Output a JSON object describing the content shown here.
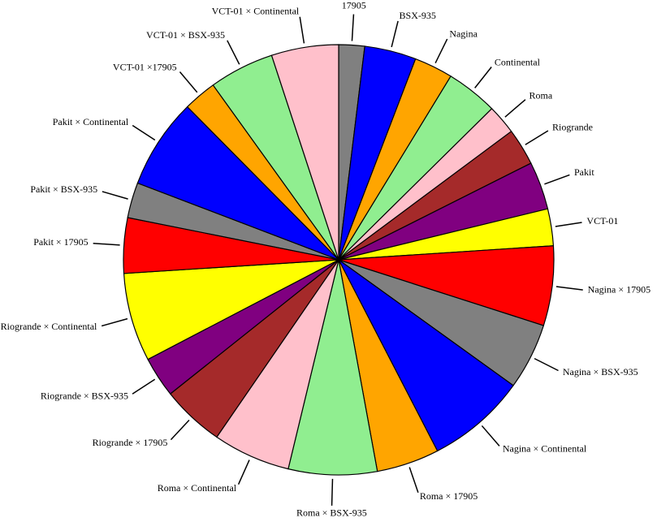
{
  "chart_data": {
    "type": "pie",
    "categories": [
      "17905",
      "BSX-935",
      "Nagina",
      "Continental",
      "Roma",
      "Riogrande",
      "Pakit",
      "VCT-01",
      "Nagina × 17905",
      "Nagina × BSX-935",
      "Nagina × Continental",
      "Roma × 17905",
      "Roma × BSX-935",
      "Roma × Continental",
      "Riogrande × 17905",
      "Riogrande × BSX-935",
      "Riogrande × Continental",
      "Pakit × 17905",
      "Pakit × BSX-935",
      "Pakit × Continental",
      "VCT-01 ×17905",
      "VCT-01 × BSX-935",
      "VCT-01 × Continental"
    ],
    "values": [
      7,
      14,
      10.5,
      14,
      8,
      10,
      13,
      10,
      21.6,
      18,
      27,
      17,
      24,
      21,
      17,
      11,
      24,
      15,
      9.6,
      24.5,
      9,
      17.6,
      18.2
    ],
    "colors": [
      "#808080",
      "#0000ff",
      "#ffa500",
      "#90ee90",
      "#ffc0cb",
      "#a52a2a",
      "#800080",
      "#ffff00",
      "#ff0000",
      "#808080",
      "#0000ff",
      "#ffa500",
      "#90ee90",
      "#ffc0cb",
      "#a52a2a",
      "#800080",
      "#ffff00",
      "#ff0000",
      "#808080",
      "#0000ff",
      "#ffa500",
      "#90ee90",
      "#ffc0cb"
    ]
  }
}
